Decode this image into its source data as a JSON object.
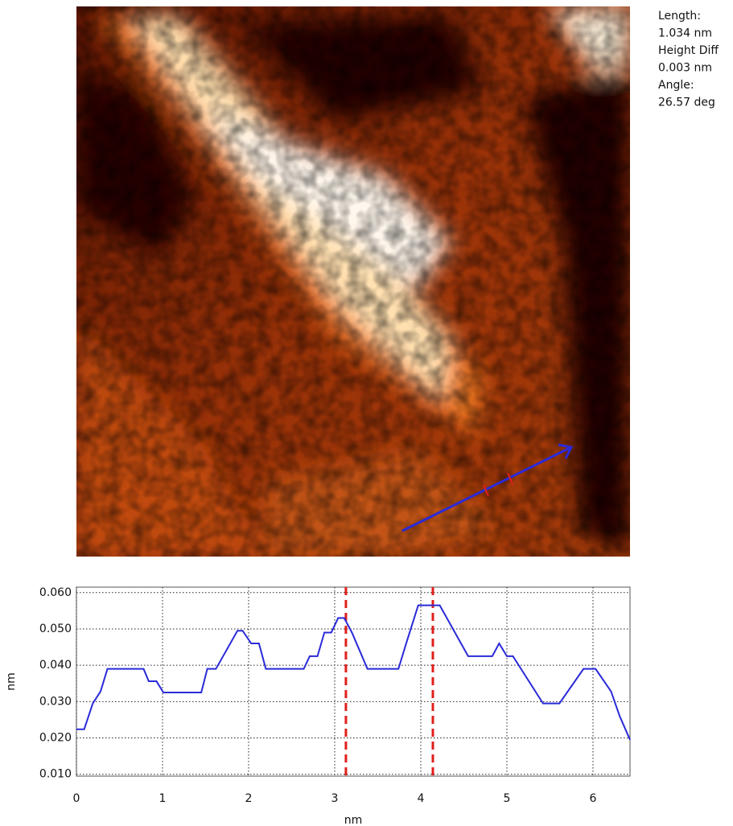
{
  "chart_data": {
    "type": "line",
    "annotations": [
      "Length:",
      "1.034 nm",
      "Height Diff",
      "0.003 nm",
      "Angle:",
      "26.57 deg"
    ],
    "xlabel": "nm",
    "ylabel": "nm",
    "xlim": [
      0,
      6.43
    ],
    "ylim": [
      0.0095,
      0.0615
    ],
    "xticks": [
      0,
      1,
      2,
      3,
      4,
      5,
      6
    ],
    "yticks": [
      {
        "value": 0.06,
        "label": "0.060"
      },
      {
        "value": 0.05,
        "label": "0.050"
      },
      {
        "value": 0.04,
        "label": "0.040"
      },
      {
        "value": 0.03,
        "label": "0.030"
      },
      {
        "value": 0.02,
        "label": "0.020"
      },
      {
        "value": 0.01,
        "label": "0.010"
      }
    ],
    "grid": true,
    "x": [
      0,
      0.09,
      0.19,
      0.28,
      0.36,
      0.78,
      0.84,
      0.93,
      1.01,
      1.45,
      1.52,
      1.62,
      1.87,
      1.93,
      2.03,
      2.12,
      2.2,
      2.64,
      2.71,
      2.8,
      2.88,
      2.96,
      3.04,
      3.11,
      3.2,
      3.38,
      3.74,
      3.83,
      3.97,
      4.22,
      4.55,
      4.83,
      4.91,
      5.0,
      5.07,
      5.42,
      5.61,
      5.89,
      6.03,
      6.21,
      6.31,
      6.43
    ],
    "values": [
      0.0224,
      0.0224,
      0.0295,
      0.0328,
      0.039,
      0.039,
      0.0356,
      0.0356,
      0.0325,
      0.0325,
      0.039,
      0.039,
      0.0495,
      0.0495,
      0.046,
      0.046,
      0.039,
      0.039,
      0.0425,
      0.0425,
      0.049,
      0.049,
      0.053,
      0.053,
      0.049,
      0.039,
      0.039,
      0.046,
      0.0565,
      0.0565,
      0.0425,
      0.0425,
      0.046,
      0.0425,
      0.0425,
      0.0295,
      0.0295,
      0.039,
      0.039,
      0.0328,
      0.026,
      0.0195
    ],
    "color": "#2a2ad8",
    "markers": {
      "x": [
        3.13,
        4.14
      ],
      "color": "#e0201c"
    }
  }
}
